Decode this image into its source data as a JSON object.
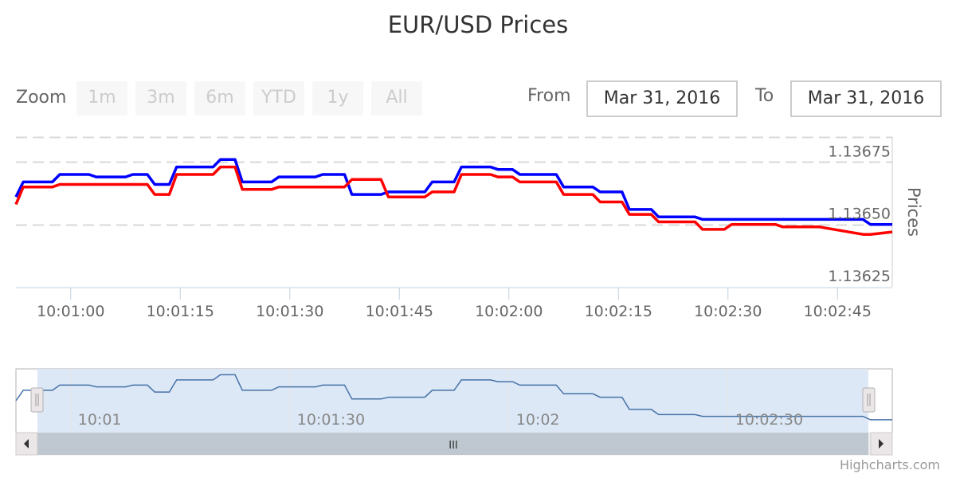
{
  "title": "EUR/USD Prices",
  "range_selector": {
    "zoom_label": "Zoom",
    "buttons": [
      "1m",
      "3m",
      "6m",
      "YTD",
      "1y",
      "All"
    ],
    "from_label": "From",
    "from_value": "Mar 31, 2016",
    "to_label": "To",
    "to_value": "Mar 31, 2016"
  },
  "credits": "Highcharts.com",
  "colors": {
    "bid": "#0000ff",
    "ask": "#ff0000",
    "navigator": "#4572a7",
    "grid": "#d8d8d8"
  },
  "navigator": {
    "x_labels": [
      "10:01",
      "10:01:30",
      "10:02",
      "10:02:30"
    ],
    "x_label_seconds": [
      60,
      90,
      120,
      150
    ],
    "scrollbar_grip": "III"
  },
  "chart_data": {
    "type": "line",
    "title": "EUR/USD Prices",
    "ylabel": "Prices",
    "xlabel": "",
    "x_unit": "seconds after 10:00:00",
    "xlim": [
      52.5,
      172.5
    ],
    "ylim": [
      1.13625,
      1.13685
    ],
    "y_ticks": [
      1.13625,
      1.1365,
      1.13675
    ],
    "y_tick_labels": [
      "1.13625",
      "1.13650",
      "1.13675"
    ],
    "x_ticks": [
      60,
      75,
      90,
      105,
      120,
      135,
      150,
      165
    ],
    "x_tick_labels": [
      "10:01:00",
      "10:01:15",
      "10:01:30",
      "10:01:45",
      "10:02:00",
      "10:02:15",
      "10:02:30",
      "10:02:45"
    ],
    "grid": true,
    "legend": "none",
    "series": [
      {
        "x": [
          52.5,
          53.5,
          57.5,
          58.5,
          62.5,
          63.5,
          67.5,
          68.5,
          70.5,
          71.5,
          73.5,
          74.5,
          79.5,
          80.5,
          82.5,
          83.5,
          87.5,
          88.5,
          93.5,
          94.5,
          97.5,
          98.5,
          102.5,
          103.5,
          108.5,
          109.5,
          112.5,
          113.5,
          117.5,
          118.5,
          120.5,
          121.5,
          126.5,
          127.5,
          131.5,
          132.5,
          135.5,
          136.5,
          139.5,
          140.5,
          145.5,
          146.5,
          149.5,
          150.5,
          152.5,
          153.5,
          156.5,
          157.5,
          161.5,
          162.5,
          168.5,
          169.5,
          172.5
        ],
        "y": [
          1.13661,
          1.13667,
          1.13667,
          1.1367,
          1.1367,
          1.13669,
          1.13669,
          1.1367,
          1.1367,
          1.13666,
          1.13666,
          1.13673,
          1.13673,
          1.13676,
          1.13676,
          1.13667,
          1.13667,
          1.13669,
          1.13669,
          1.1367,
          1.1367,
          1.13662,
          1.13662,
          1.13663,
          1.13663,
          1.13667,
          1.13667,
          1.13673,
          1.13673,
          1.13672,
          1.13672,
          1.1367,
          1.1367,
          1.13665,
          1.13665,
          1.13663,
          1.13663,
          1.13656,
          1.13656,
          1.13653,
          1.13653,
          1.13652,
          1.13652,
          1.13652,
          1.13652,
          1.13652,
          1.13652,
          1.13652,
          1.13652,
          1.13652,
          1.13652,
          1.1365,
          1.1365
        ]
      },
      {
        "x": [
          52.5,
          53.5,
          57.5,
          58.5,
          62.5,
          63.5,
          67.5,
          68.5,
          70.5,
          71.5,
          73.5,
          74.5,
          79.5,
          80.5,
          82.5,
          83.5,
          87.5,
          88.5,
          93.5,
          94.5,
          97.5,
          98.5,
          102.5,
          103.5,
          108.5,
          109.5,
          112.5,
          113.5,
          117.5,
          118.5,
          120.5,
          121.5,
          126.5,
          127.5,
          131.5,
          132.5,
          135.5,
          136.5,
          139.5,
          140.5,
          145.5,
          146.5,
          149.5,
          150.5,
          152.5,
          153.5,
          156.5,
          157.5,
          161.5,
          162.5,
          168.5,
          169.5,
          172.5
        ],
        "y": [
          1.13658,
          1.13665,
          1.13665,
          1.13666,
          1.13666,
          1.13666,
          1.13666,
          1.13666,
          1.13666,
          1.13662,
          1.13662,
          1.1367,
          1.1367,
          1.13673,
          1.13673,
          1.13664,
          1.13664,
          1.13665,
          1.13665,
          1.13665,
          1.13665,
          1.13668,
          1.13668,
          1.13661,
          1.13661,
          1.13663,
          1.13663,
          1.1367,
          1.1367,
          1.13669,
          1.13669,
          1.13667,
          1.13667,
          1.13662,
          1.13662,
          1.13659,
          1.13659,
          1.13654,
          1.13654,
          1.13651,
          1.13651,
          1.13648,
          1.13648,
          1.1365,
          1.1365,
          1.1365,
          1.1365,
          1.13649,
          1.13649,
          1.13649,
          1.13646,
          1.13646,
          1.13647
        ]
      }
    ]
  }
}
